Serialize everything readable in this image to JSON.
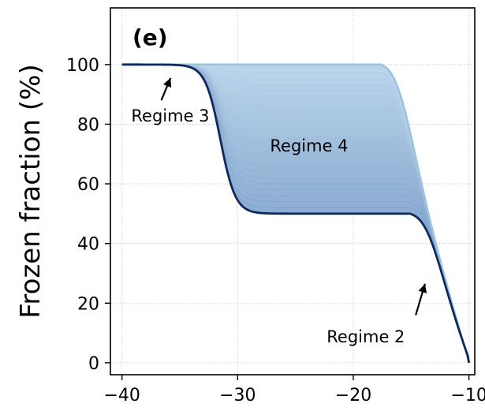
{
  "chart_data": {
    "type": "line",
    "panel_label": "(e)",
    "xlabel": "",
    "ylabel": "Frozen fraction (%)",
    "xlim": [
      -41,
      -9.5
    ],
    "ylim": [
      -4,
      119
    ],
    "xticks": [
      -40,
      -30,
      -20,
      -10
    ],
    "xtick_labels": [
      "−40",
      "−30",
      "−20",
      "−10"
    ],
    "yticks": [
      0,
      20,
      40,
      60,
      80,
      100
    ],
    "ytick_labels": [
      "0",
      "20",
      "40",
      "60",
      "80",
      "100"
    ],
    "grid": true,
    "colors": {
      "dark_line": "#0c2a5e",
      "light_line": "#9cc3de",
      "fill_light": "#b9d4ea",
      "fill_dark": "#5f86bb"
    },
    "series_family": {
      "count": 26,
      "first_plateau_fraction_range": [
        50,
        100
      ],
      "x_first_drop": -31.5,
      "x_second_drop_range": [
        -13.3,
        -15.8
      ],
      "x_end": -10
    },
    "series": [
      {
        "label_role": "lower envelope",
        "x": [
          -40,
          -34,
          -33,
          -32.5,
          -32,
          -31.5,
          -31,
          -30.5,
          -30,
          -29,
          -28,
          -26,
          -20,
          -17,
          -16,
          -15,
          -14,
          -13,
          -12,
          -11,
          -10
        ],
        "y": [
          100,
          100,
          99,
          97,
          91,
          80,
          68,
          59,
          54,
          51,
          50,
          50,
          50,
          49.8,
          49.2,
          47,
          41,
          31,
          21,
          10,
          0
        ]
      },
      {
        "label_role": "upper envelope",
        "x": [
          -40,
          -20,
          -19,
          -18,
          -17,
          -16,
          -15,
          -14,
          -13,
          -12,
          -11,
          -10
        ],
        "y": [
          100,
          100,
          99.5,
          98,
          94,
          85,
          73,
          58,
          43,
          28,
          14,
          0
        ]
      }
    ],
    "annotations": [
      {
        "text": "Regime 3",
        "x": -39.2,
        "y": 83,
        "arrow_from": [
          -36.6,
          88
        ],
        "arrow_to": [
          -35.8,
          95.5
        ]
      },
      {
        "text": "Regime 4",
        "x": -27.2,
        "y": 73
      },
      {
        "text": "Regime 2",
        "x": -22.3,
        "y": 9,
        "arrow_from": [
          -14.6,
          16
        ],
        "arrow_to": [
          -13.8,
          26.5
        ]
      }
    ]
  }
}
